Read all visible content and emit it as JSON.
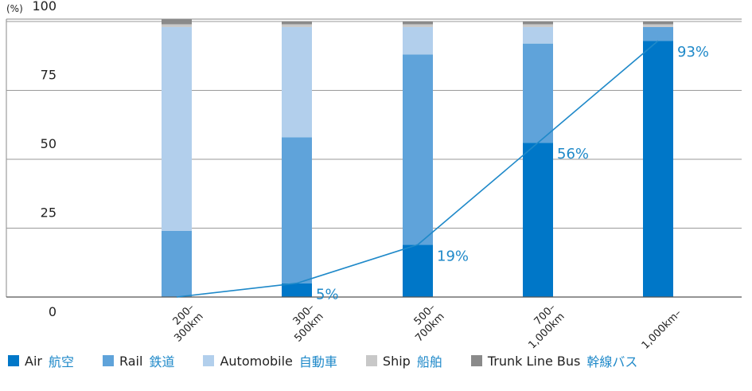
{
  "chart_data": {
    "type": "bar",
    "stacked": true,
    "y_unit": "(%)",
    "ylim": [
      0,
      100
    ],
    "y_ticks": [
      0,
      25,
      50,
      75,
      100
    ],
    "grid": true,
    "categories": [
      "200–300km",
      "300–500km",
      "500–700km",
      "700–1,000km",
      "1,000km–"
    ],
    "series": [
      {
        "name": "Air",
        "name_ja": "航空",
        "color": "#0077c8",
        "values": [
          0,
          5,
          19,
          56,
          93
        ]
      },
      {
        "name": "Rail",
        "name_ja": "鉄道",
        "color": "#5fa3da",
        "values": [
          24,
          53,
          69,
          36,
          5
        ]
      },
      {
        "name": "Automobile",
        "name_ja": "自動車",
        "color": "#b2cfec",
        "values": [
          74,
          40,
          10,
          6,
          0
        ]
      },
      {
        "name": "Ship",
        "name_ja": "船舶",
        "color": "#c8c8c8",
        "values": [
          1,
          1,
          1,
          1,
          1
        ]
      },
      {
        "name": "Trunk Line Bus",
        "name_ja": "幹線バス",
        "color": "#8a8a8a",
        "values": [
          2,
          1,
          1,
          1,
          1
        ]
      }
    ],
    "air_share_line": {
      "color": "#1f89c9",
      "values": [
        0,
        5,
        19,
        56,
        93
      ],
      "labels": [
        "",
        "5%",
        "19%",
        "56%",
        "93%"
      ]
    },
    "legend_position": "bottom"
  }
}
